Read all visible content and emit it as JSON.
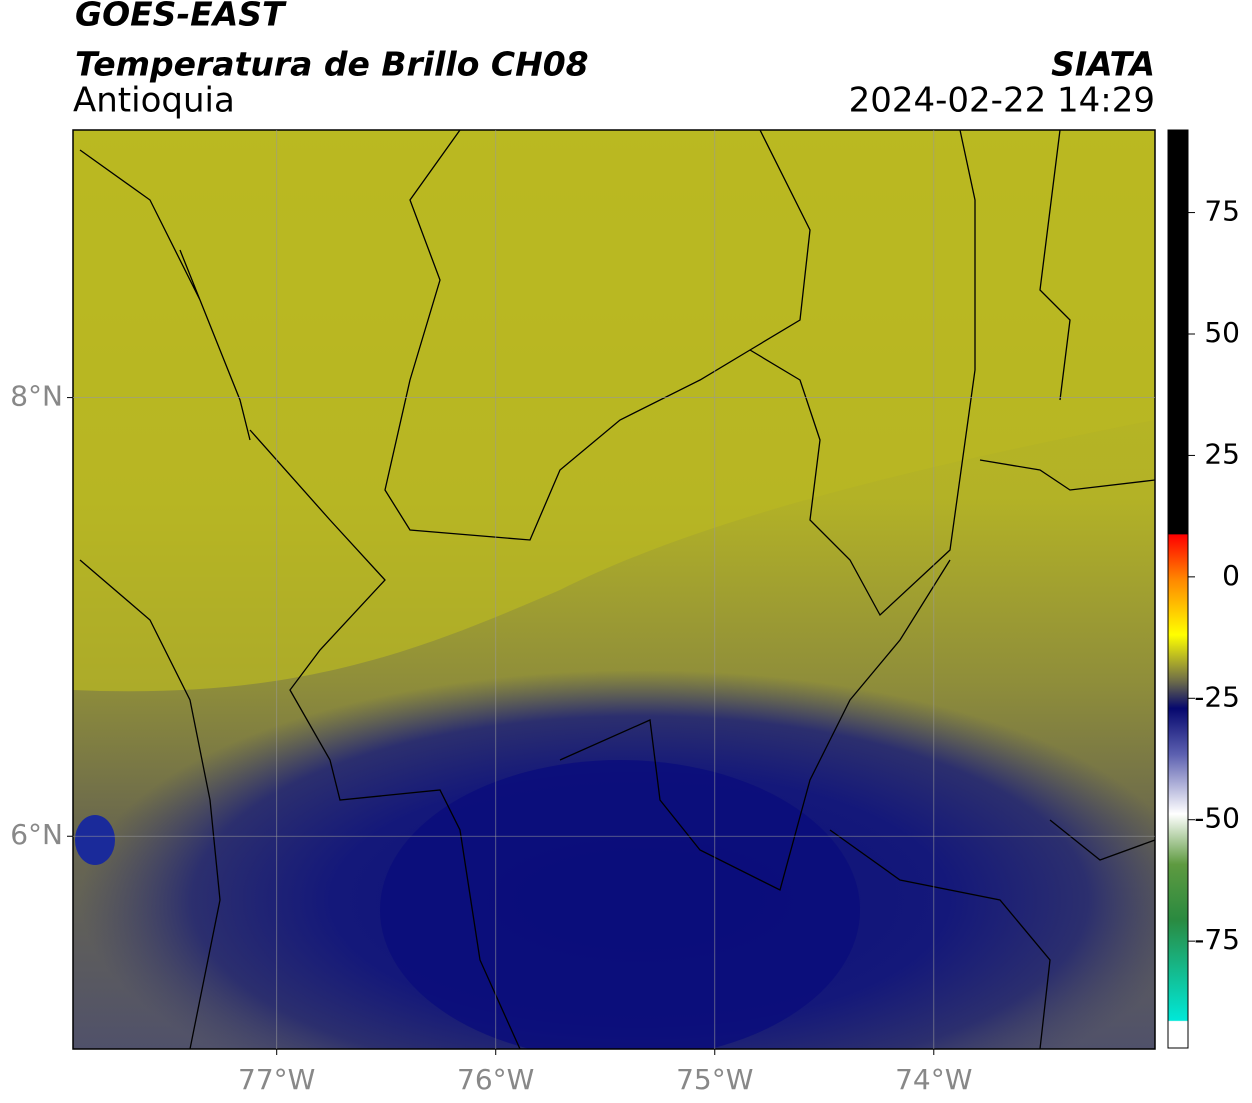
{
  "header": {
    "title": "GOES-EAST",
    "subtitle": "Temperatura de Brillo CH08",
    "region": "Antioquia",
    "source": "SIATA",
    "datetime": "2024-02-22 14:29"
  },
  "map": {
    "xlim": [
      -77.93,
      -72.99
    ],
    "ylim": [
      5.03,
      9.22
    ],
    "xticks": [
      {
        "value": -77,
        "label": "77°W"
      },
      {
        "value": -76,
        "label": "76°W"
      },
      {
        "value": -75,
        "label": "75°W"
      },
      {
        "value": -74,
        "label": "74°W"
      }
    ],
    "yticks": [
      {
        "value": 8,
        "label": "8°N"
      },
      {
        "value": 6,
        "label": "6°N"
      }
    ],
    "grid": true
  },
  "colorbar": {
    "ylim": [
      -97,
      92
    ],
    "yticks": [
      75,
      50,
      25,
      0,
      -25,
      -50,
      -75
    ]
  }
}
